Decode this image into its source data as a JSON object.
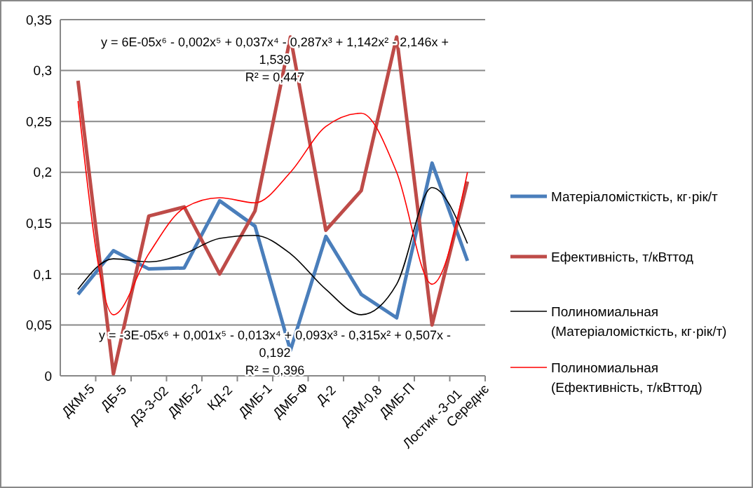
{
  "chart_data": {
    "type": "line",
    "categories": [
      "ДКМ-5",
      "ДБ-5",
      "ДЗ-3-02",
      "ДМБ-2",
      "КД-2",
      "ДМБ-1",
      "ДМБ-Ф",
      "Д-2",
      "ДЗМ-0,8",
      "ДМБ-П",
      "Лостик -3-01",
      "Середнє"
    ],
    "series": [
      {
        "name": "Матеріаломісткість, кг·рік/т",
        "color": "#4a7ebb",
        "values": [
          0.08,
          0.123,
          0.105,
          0.106,
          0.172,
          0.147,
          0.025,
          0.137,
          0.08,
          0.057,
          0.209,
          0.113
        ]
      },
      {
        "name": "Ефективність, т/кВттод",
        "color": "#be4b48",
        "values": [
          0.29,
          0.002,
          0.157,
          0.166,
          0.1,
          0.162,
          0.333,
          0.143,
          0.182,
          0.333,
          0.05,
          0.191
        ]
      },
      {
        "name": "Полиномиальная (Матеріаломісткість, кг·рік/т)",
        "color": "#000000",
        "values": [
          0.085,
          0.115,
          0.112,
          0.12,
          0.135,
          0.138,
          0.12,
          0.085,
          0.06,
          0.09,
          0.185,
          0.13
        ]
      },
      {
        "name": "Полиномиальная (Ефективність, т/кВттод)",
        "color": "#ff0000",
        "values": [
          0.27,
          0.06,
          0.12,
          0.165,
          0.175,
          0.17,
          0.2,
          0.245,
          0.258,
          0.2,
          0.09,
          0.2
        ]
      }
    ],
    "ylim": [
      0,
      0.35
    ],
    "yticks": [
      {
        "value": 0,
        "label": "0"
      },
      {
        "value": 0.05,
        "label": "0,05"
      },
      {
        "value": 0.1,
        "label": "0,1"
      },
      {
        "value": 0.15,
        "label": "0,15"
      },
      {
        "value": 0.2,
        "label": "0,2"
      },
      {
        "value": 0.25,
        "label": "0,25"
      },
      {
        "value": 0.3,
        "label": "0,3"
      },
      {
        "value": 0.35,
        "label": "0,35"
      }
    ],
    "grid": "y",
    "legend": "right",
    "marker": "none",
    "line_style": "solid",
    "annotations": [
      "y = 6E-05x⁶ - 0,002x⁵ + 0,037x⁴ - 0,287x³ + 1,142x² - 2,146x + 1,539",
      "R² = 0,447",
      "y = -3E-05x⁶ + 0,001x⁵ - 0,013x⁴ + 0,093x³ - 0,315x² + 0,507x - 0,192",
      "R² = 0,396"
    ]
  }
}
